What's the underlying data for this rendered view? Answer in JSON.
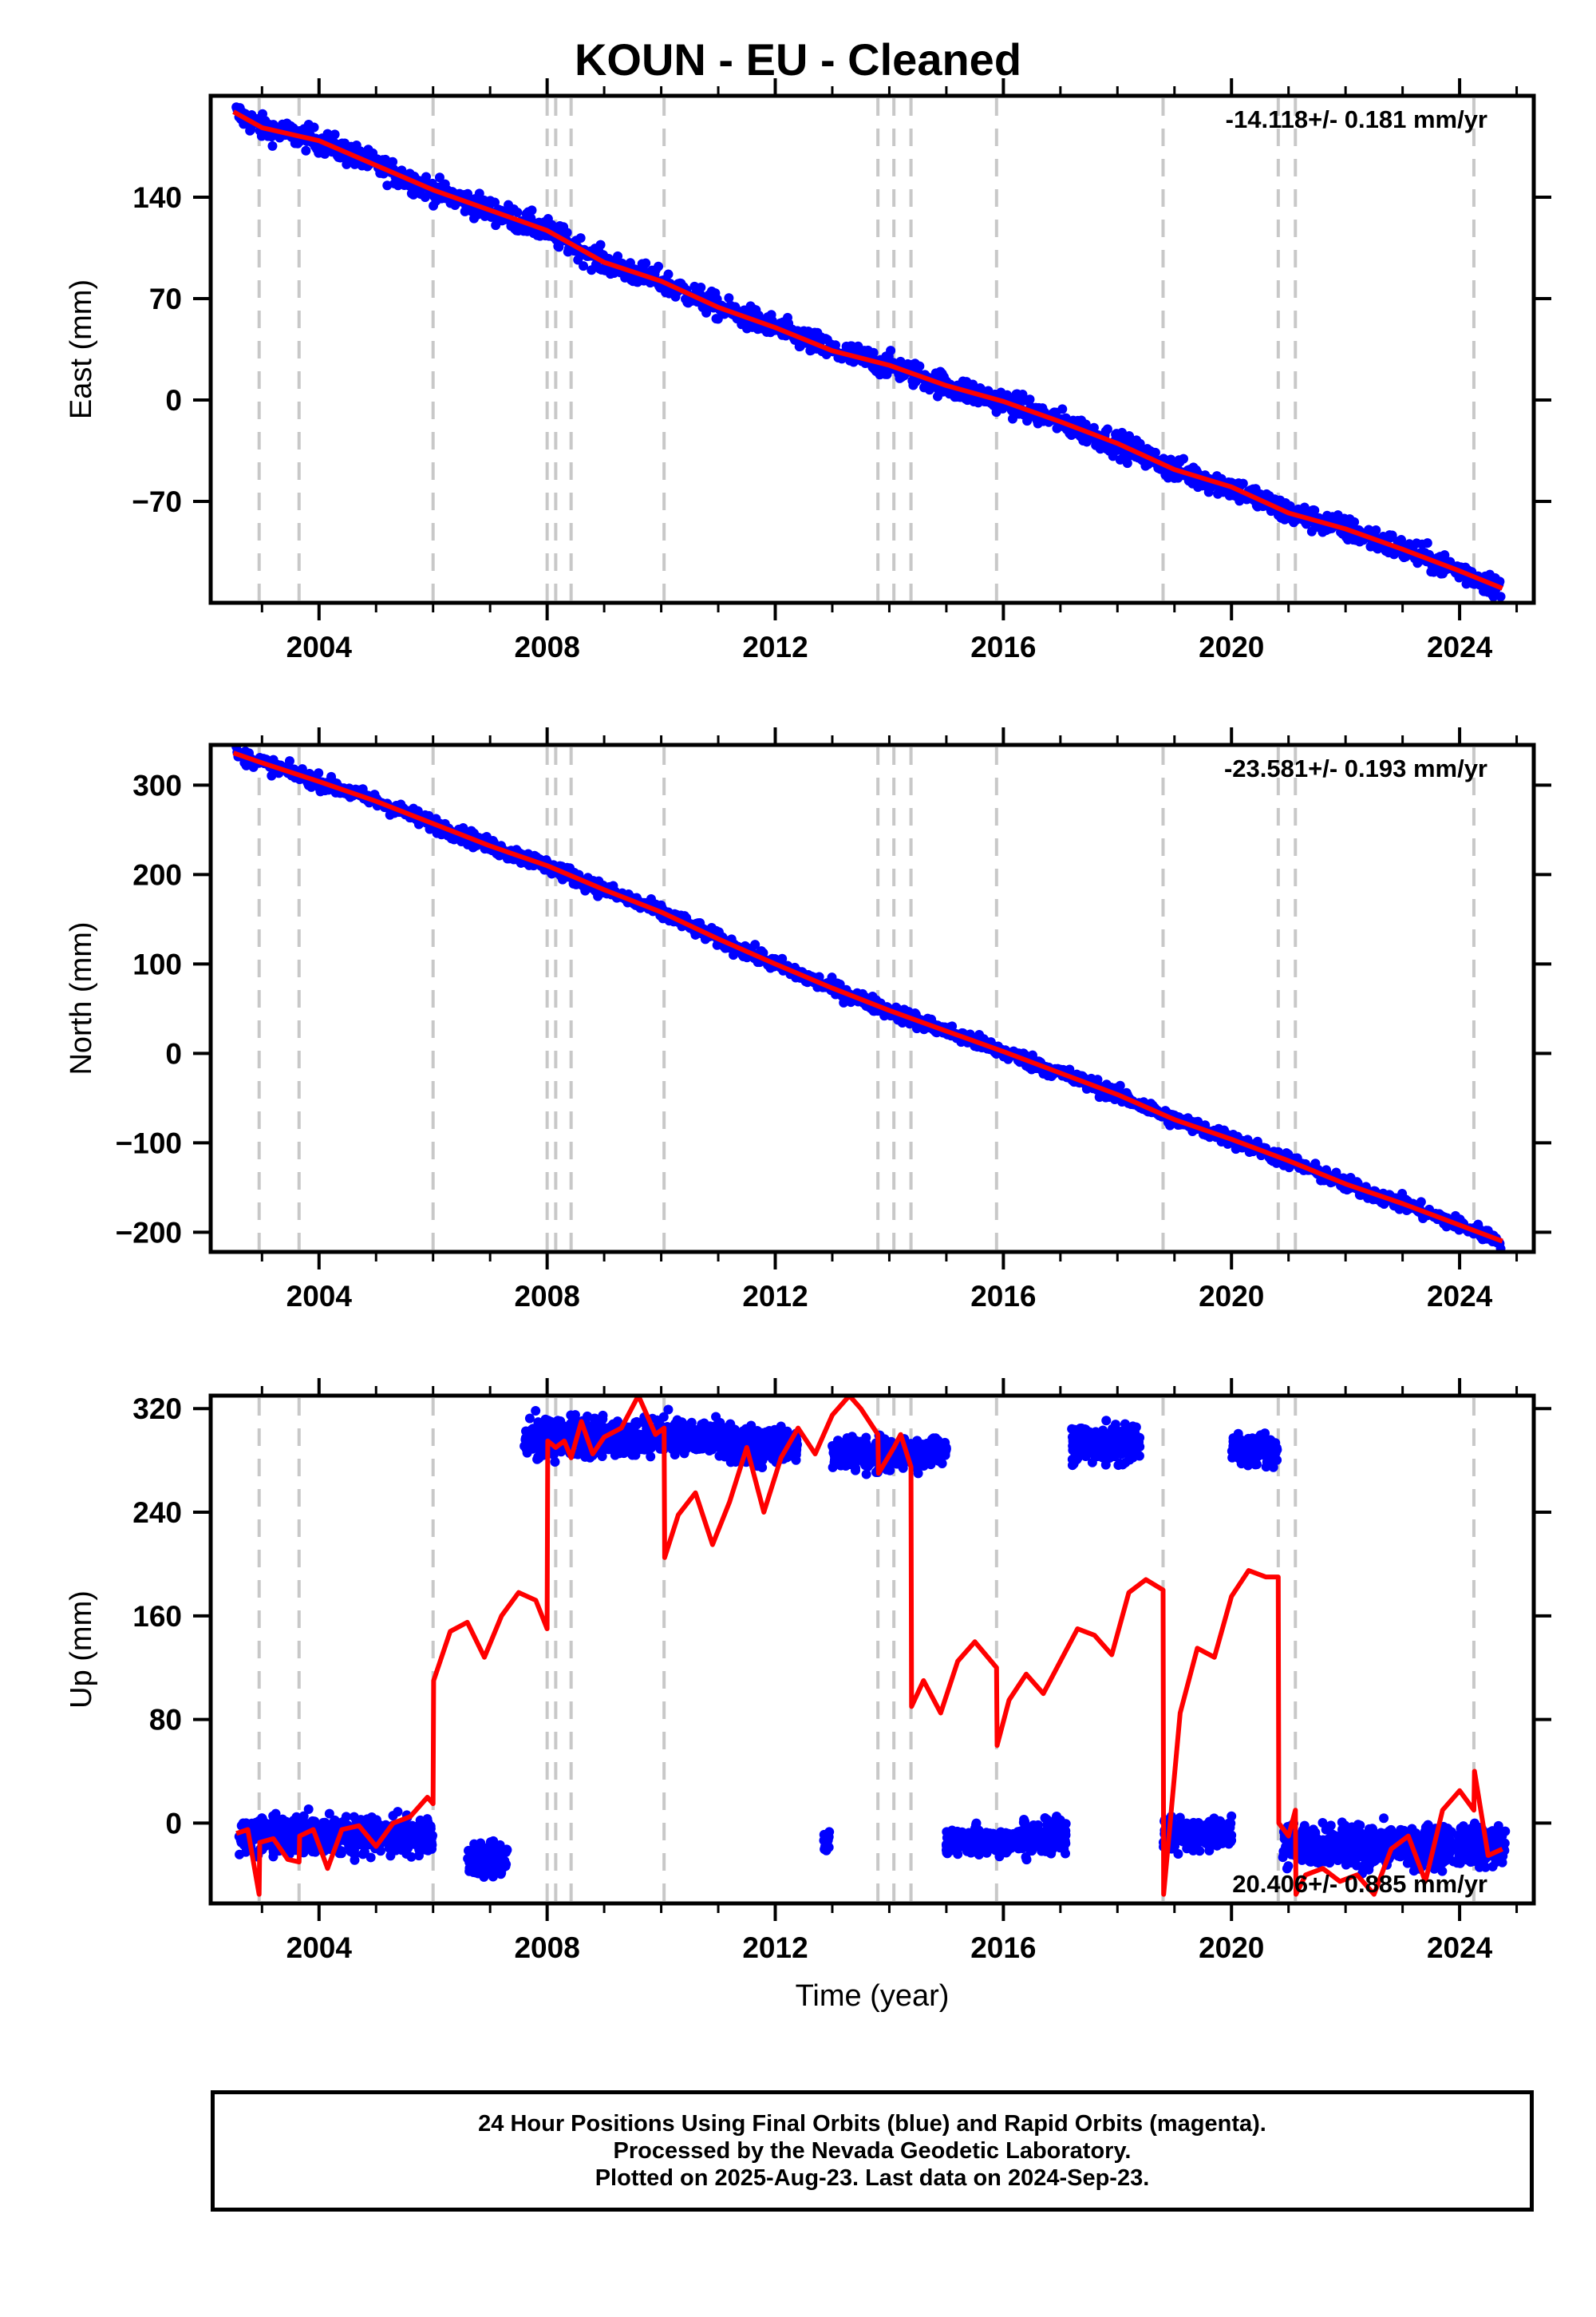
{
  "title": "KOUN  - EU - Cleaned",
  "footer": {
    "line1": "24 Hour Positions Using Final Orbits (blue) and Rapid Orbits (magenta).",
    "line2": "Processed by the Nevada Geodetic Laboratory.",
    "line3": "Plotted on 2025-Aug-23. Last data on 2024-Sep-23."
  },
  "colors": {
    "data": "#0000ff",
    "model": "#ff0000",
    "steps": "#c8c8c8"
  },
  "chart_data": [
    {
      "type": "scatter",
      "panel": "east",
      "ylabel": "East (mm)",
      "xlabel": "",
      "xlim": [
        2002.1,
        2025.3
      ],
      "ylim": [
        -140,
        210
      ],
      "xticks": [
        2004,
        2008,
        2012,
        2016,
        2020,
        2024
      ],
      "yticks": [
        -70,
        0,
        70,
        140
      ],
      "rate_label": "-14.118+/- 0.181 mm/yr",
      "rate_position": "top-right",
      "step_dates": [
        2002.95,
        2003.65,
        2006.0,
        2008.0,
        2008.15,
        2008.42,
        2010.05,
        2013.8,
        2014.08,
        2014.38,
        2015.88,
        2018.8,
        2020.82,
        2021.12,
        2024.25
      ],
      "series": [
        {
          "kind": "points",
          "start": 2002.55,
          "end": 2024.72,
          "start_value": 200,
          "end_value": -130,
          "scatter": 6
        },
        {
          "kind": "line",
          "x": [
            2002.5,
            2003.0,
            2004.0,
            2005.0,
            2006.0,
            2007.0,
            2008.0,
            2009.0,
            2010.0,
            2011.0,
            2012.0,
            2013.0,
            2014.0,
            2015.0,
            2016.0,
            2017.0,
            2018.0,
            2019.0,
            2020.0,
            2021.0,
            2022.0,
            2023.0,
            2024.0,
            2024.75
          ],
          "y": [
            199,
            188,
            179,
            162,
            145,
            131,
            117,
            95,
            82,
            64,
            50,
            34,
            24,
            10,
            -1,
            -15,
            -30,
            -48,
            -60,
            -78,
            -89,
            -103,
            -118,
            -130
          ]
        }
      ]
    },
    {
      "type": "scatter",
      "panel": "north",
      "ylabel": "North (mm)",
      "xlabel": "",
      "xlim": [
        2002.1,
        2025.3
      ],
      "ylim": [
        -222,
        345
      ],
      "xticks": [
        2004,
        2008,
        2012,
        2016,
        2020,
        2024
      ],
      "yticks": [
        -200,
        -100,
        0,
        100,
        200,
        300
      ],
      "rate_label": "-23.581+/- 0.193 mm/yr",
      "rate_position": "top-right",
      "step_dates": [
        2002.95,
        2003.65,
        2006.0,
        2008.0,
        2008.15,
        2008.42,
        2010.05,
        2013.8,
        2014.08,
        2014.38,
        2015.88,
        2018.8,
        2020.82,
        2021.12,
        2024.25
      ],
      "series": [
        {
          "kind": "points",
          "start": 2002.55,
          "end": 2024.72,
          "start_value": 338,
          "end_value": -210,
          "scatter": 6
        },
        {
          "kind": "line",
          "x": [
            2002.5,
            2003.0,
            2004.0,
            2005.0,
            2006.0,
            2007.0,
            2008.0,
            2009.0,
            2010.0,
            2011.0,
            2012.0,
            2013.0,
            2014.0,
            2015.0,
            2016.0,
            2017.0,
            2018.0,
            2019.0,
            2020.0,
            2021.0,
            2022.0,
            2023.0,
            2024.0,
            2024.75
          ],
          "y": [
            336,
            325,
            304,
            282,
            257,
            232,
            210,
            183,
            158,
            128,
            100,
            73,
            48,
            25,
            2,
            -22,
            -46,
            -74,
            -96,
            -120,
            -146,
            -168,
            -192,
            -210
          ]
        }
      ]
    },
    {
      "type": "scatter",
      "panel": "up",
      "ylabel": "Up (mm)",
      "xlabel": "Time (year)",
      "xlim": [
        2002.1,
        2025.3
      ],
      "ylim": [
        -62,
        330
      ],
      "xticks": [
        2004,
        2008,
        2012,
        2016,
        2020,
        2024
      ],
      "yticks": [
        0,
        80,
        160,
        240,
        320
      ],
      "rate_label": "20.406+/- 0.885 mm/yr",
      "rate_position": "bottom-right",
      "step_dates": [
        2002.95,
        2003.65,
        2006.0,
        2008.0,
        2008.15,
        2008.42,
        2010.05,
        2013.8,
        2014.08,
        2014.38,
        2015.88,
        2018.8,
        2020.82,
        2021.12,
        2024.25
      ],
      "series": [
        {
          "kind": "clusters",
          "groups": [
            {
              "start": 2002.6,
              "end": 2006.0,
              "center": -10,
              "spread": 10
            },
            {
              "start": 2006.6,
              "end": 2007.3,
              "center": -28,
              "spread": 9
            },
            {
              "start": 2007.6,
              "end": 2011.0,
              "center": 298,
              "spread": 10
            },
            {
              "start": 2011.0,
              "end": 2012.4,
              "center": 292,
              "spread": 10
            },
            {
              "start": 2012.85,
              "end": 2012.95,
              "center": -15,
              "spread": 8
            },
            {
              "start": 2013.0,
              "end": 2014.7,
              "center": 285,
              "spread": 9
            },
            {
              "start": 2014.7,
              "end": 2015.0,
              "center": 287,
              "spread": 6
            },
            {
              "start": 2015.0,
              "end": 2016.3,
              "center": -14,
              "spread": 7
            },
            {
              "start": 2016.3,
              "end": 2017.1,
              "center": -10,
              "spread": 10
            },
            {
              "start": 2017.2,
              "end": 2018.4,
              "center": 292,
              "spread": 10
            },
            {
              "start": 2018.8,
              "end": 2020.0,
              "center": -8,
              "spread": 9
            },
            {
              "start": 2020.0,
              "end": 2020.8,
              "center": 288,
              "spread": 8
            },
            {
              "start": 2020.9,
              "end": 2024.8,
              "center": -17,
              "spread": 11
            }
          ]
        },
        {
          "kind": "line",
          "x": [
            2002.55,
            2002.75,
            2002.95,
            2002.96,
            2003.2,
            2003.45,
            2003.65,
            2003.66,
            2003.9,
            2004.15,
            2004.4,
            2004.7,
            2005.0,
            2005.3,
            2005.6,
            2005.9,
            2006.0,
            2006.01,
            2006.3,
            2006.6,
            2006.9,
            2007.2,
            2007.5,
            2007.8,
            2008.0,
            2008.01,
            2008.15,
            2008.3,
            2008.42,
            2008.6,
            2008.8,
            2009.0,
            2009.3,
            2009.6,
            2009.9,
            2010.05,
            2010.06,
            2010.3,
            2010.6,
            2010.9,
            2011.2,
            2011.5,
            2011.8,
            2012.1,
            2012.4,
            2012.7,
            2013.0,
            2013.3,
            2013.5,
            2013.8,
            2013.81,
            2014.08,
            2014.2,
            2014.38,
            2014.39,
            2014.6,
            2014.9,
            2015.2,
            2015.5,
            2015.88,
            2015.89,
            2016.1,
            2016.4,
            2016.7,
            2017.0,
            2017.3,
            2017.6,
            2017.9,
            2018.2,
            2018.5,
            2018.8,
            2018.81,
            2019.1,
            2019.4,
            2019.7,
            2020.0,
            2020.3,
            2020.6,
            2020.82,
            2020.83,
            2021.0,
            2021.12,
            2021.13,
            2021.3,
            2021.6,
            2021.9,
            2022.2,
            2022.5,
            2022.8,
            2023.1,
            2023.4,
            2023.7,
            2024.0,
            2024.25,
            2024.26,
            2024.5,
            2024.75
          ],
          "y": [
            -8,
            -5,
            -55,
            -15,
            -12,
            -28,
            -30,
            -10,
            -5,
            -35,
            -5,
            -2,
            -18,
            0,
            5,
            20,
            15,
            110,
            148,
            155,
            128,
            160,
            178,
            172,
            150,
            295,
            290,
            295,
            282,
            310,
            285,
            298,
            305,
            330,
            300,
            305,
            205,
            238,
            255,
            215,
            248,
            290,
            240,
            282,
            305,
            285,
            315,
            330,
            320,
            300,
            270,
            290,
            300,
            275,
            90,
            110,
            85,
            125,
            140,
            120,
            60,
            95,
            115,
            100,
            125,
            150,
            145,
            130,
            178,
            188,
            180,
            -55,
            85,
            135,
            128,
            175,
            195,
            190,
            190,
            0,
            -10,
            10,
            -55,
            -40,
            -35,
            -45,
            -40,
            -55,
            -20,
            -10,
            -45,
            10,
            25,
            10,
            40,
            -25,
            -20
          ],
          "clip": true
        }
      ]
    }
  ]
}
